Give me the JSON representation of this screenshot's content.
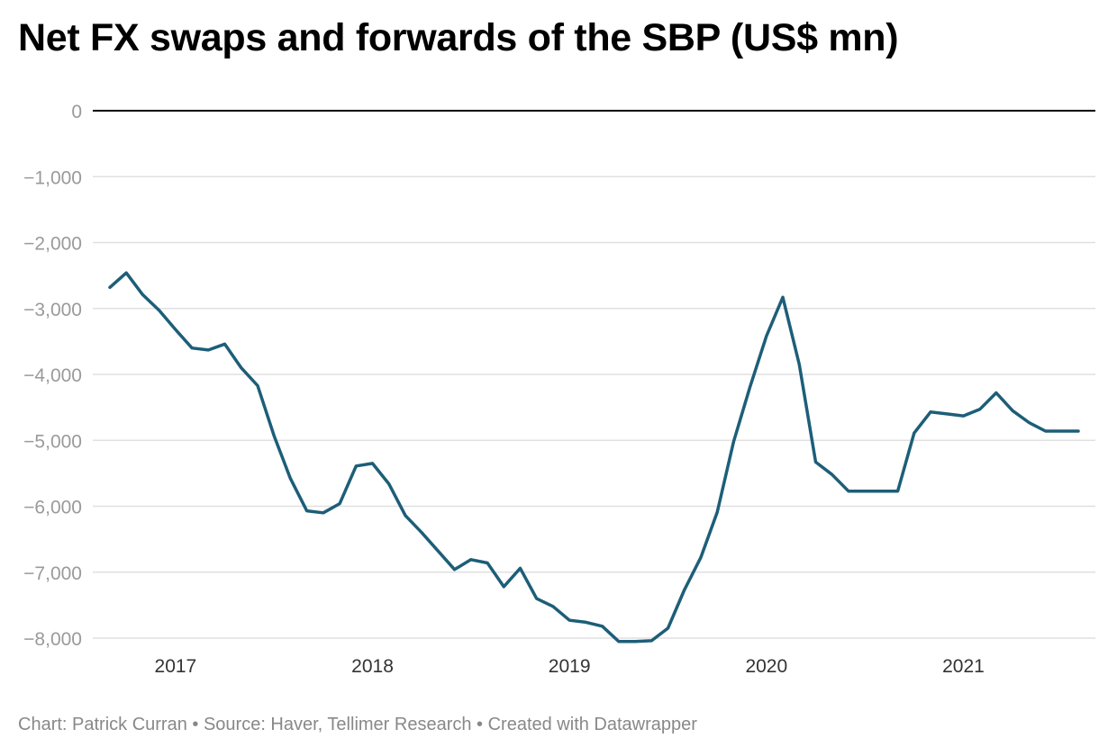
{
  "title": "Net FX swaps and forwards of the SBP (US$ mn)",
  "footer": "Chart: Patrick Curran • Source: Haver, Tellimer Research • Created with Datawrapper",
  "colors": {
    "line": "#1d5e78",
    "grid": "#e0e0e0",
    "zero_line": "#000000",
    "y_tick_text": "#9a9a9a",
    "x_tick_text": "#333333"
  },
  "chart_data": {
    "type": "line",
    "title": "Net FX swaps and forwards of the SBP (US$ mn)",
    "xlabel": "",
    "ylabel": "",
    "ylim": [
      -8000,
      0
    ],
    "y_ticks": [
      0,
      -1000,
      -2000,
      -3000,
      -4000,
      -5000,
      -6000,
      -7000,
      -8000
    ],
    "y_tick_labels": [
      "0",
      "−1,000",
      "−2,000",
      "−3,000",
      "−4,000",
      "−5,000",
      "−6,000",
      "−7,000",
      "−8,000"
    ],
    "x_ticks": [
      "2017",
      "2018",
      "2019",
      "2020",
      "2021"
    ],
    "x_range": [
      "2016-09",
      "2021-08"
    ],
    "grid": true,
    "legend": "none",
    "series": [
      {
        "points": [
          [
            "2016-09",
            -2680
          ],
          [
            "2016-10",
            -2460
          ],
          [
            "2016-11",
            -2790
          ],
          [
            "2016-12",
            -3030
          ],
          [
            "2017-01",
            -3320
          ],
          [
            "2017-02",
            -3600
          ],
          [
            "2017-03",
            -3630
          ],
          [
            "2017-04",
            -3540
          ],
          [
            "2017-05",
            -3900
          ],
          [
            "2017-06",
            -4170
          ],
          [
            "2017-07",
            -4930
          ],
          [
            "2017-08",
            -5580
          ],
          [
            "2017-09",
            -6070
          ],
          [
            "2017-10",
            -6100
          ],
          [
            "2017-11",
            -5960
          ],
          [
            "2017-12",
            -5390
          ],
          [
            "2018-01",
            -5350
          ],
          [
            "2018-02",
            -5660
          ],
          [
            "2018-03",
            -6140
          ],
          [
            "2018-04",
            -6400
          ],
          [
            "2018-05",
            -6680
          ],
          [
            "2018-06",
            -6960
          ],
          [
            "2018-07",
            -6810
          ],
          [
            "2018-08",
            -6860
          ],
          [
            "2018-09",
            -7220
          ],
          [
            "2018-10",
            -6940
          ],
          [
            "2018-11",
            -7400
          ],
          [
            "2018-12",
            -7520
          ],
          [
            "2019-01",
            -7730
          ],
          [
            "2019-02",
            -7760
          ],
          [
            "2019-03",
            -7820
          ],
          [
            "2019-04",
            -8050
          ],
          [
            "2019-05",
            -8050
          ],
          [
            "2019-06",
            -8040
          ],
          [
            "2019-07",
            -7850
          ],
          [
            "2019-08",
            -7270
          ],
          [
            "2019-09",
            -6780
          ],
          [
            "2019-10",
            -6090
          ],
          [
            "2019-11",
            -5020
          ],
          [
            "2019-12",
            -4190
          ],
          [
            "2020-01",
            -3420
          ],
          [
            "2020-02",
            -2830
          ],
          [
            "2020-03",
            -3850
          ],
          [
            "2020-04",
            -5330
          ],
          [
            "2020-05",
            -5520
          ],
          [
            "2020-06",
            -5770
          ],
          [
            "2020-07",
            -5770
          ],
          [
            "2020-08",
            -5770
          ],
          [
            "2020-09",
            -5770
          ],
          [
            "2020-10",
            -4890
          ],
          [
            "2020-11",
            -4570
          ],
          [
            "2020-12",
            -4600
          ],
          [
            "2021-01",
            -4630
          ],
          [
            "2021-02",
            -4530
          ],
          [
            "2021-03",
            -4280
          ],
          [
            "2021-04",
            -4550
          ],
          [
            "2021-05",
            -4730
          ],
          [
            "2021-06",
            -4860
          ],
          [
            "2021-07",
            -4860
          ],
          [
            "2021-08",
            -4860
          ]
        ]
      }
    ]
  }
}
